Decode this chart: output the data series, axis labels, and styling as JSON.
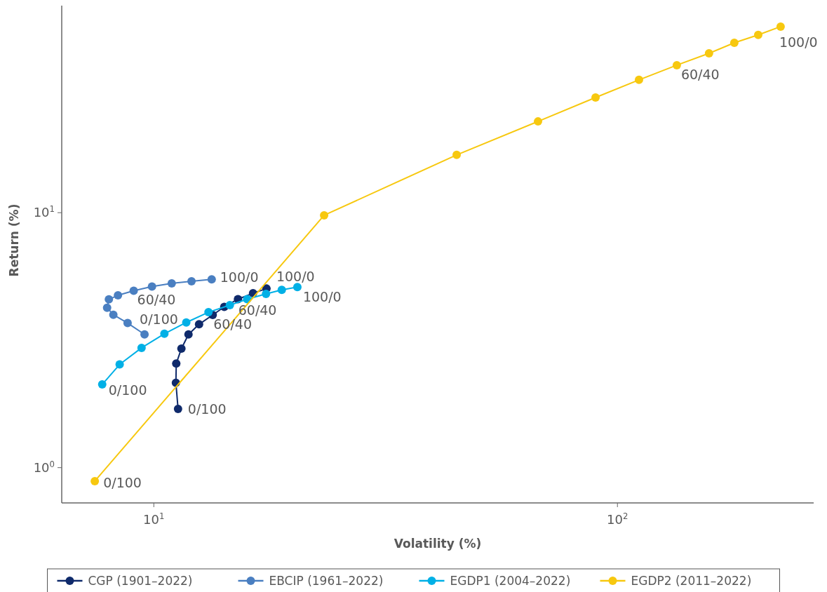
{
  "chart_data": {
    "type": "line",
    "xlabel": "Volatility (%)",
    "ylabel": "Return (%)",
    "log": "xy",
    "marker": "circle",
    "grid": false,
    "legend": "bottom",
    "xlim": [
      6.33,
      265
    ],
    "ylim": [
      0.727,
      64.9
    ],
    "xticks": [
      {
        "value": 10,
        "label": "10$^{1}$"
      },
      {
        "value": 100,
        "label": "10$^{2}$"
      }
    ],
    "yticks": [
      {
        "value": 1,
        "label": "10$^{0}$"
      },
      {
        "value": 10,
        "label": "10$^{1}$"
      }
    ],
    "series": [
      {
        "name": "CGP (1901–2022)",
        "color": "#0f2a6b",
        "x": [
          11.28,
          11.16,
          11.18,
          11.47,
          11.88,
          12.52,
          13.4,
          14.19,
          15.19,
          16.37,
          17.5
        ],
        "values": [
          1.7,
          2.15,
          2.56,
          2.93,
          3.33,
          3.65,
          3.97,
          4.27,
          4.58,
          4.83,
          5.04
        ]
      },
      {
        "name": "EBCIP (1961–2022)",
        "color": "#4a7fc1",
        "x": [
          9.55,
          8.78,
          8.18,
          7.93,
          8.0,
          8.37,
          9.05,
          9.91,
          10.93,
          12.06,
          13.33
        ],
        "values": [
          3.33,
          3.69,
          3.98,
          4.24,
          4.57,
          4.74,
          4.94,
          5.13,
          5.28,
          5.38,
          5.48
        ]
      },
      {
        "name": "EGDP1 (2004–2022)",
        "color": "#00b0e6",
        "x": [
          7.74,
          8.44,
          9.41,
          10.54,
          11.75,
          13.12,
          14.59,
          15.9,
          17.46,
          18.88,
          20.4
        ],
        "values": [
          2.12,
          2.54,
          2.95,
          3.35,
          3.71,
          4.07,
          4.34,
          4.58,
          4.8,
          4.98,
          5.11
        ]
      },
      {
        "name": "EGDP2 (2011–2022)",
        "color": "#f7c80f",
        "x": [
          7.46,
          23.3,
          45.0,
          67.4,
          89.7,
          111.3,
          134.3,
          157.6,
          178.7,
          201.2,
          224.9
        ],
        "values": [
          0.885,
          9.77,
          16.85,
          22.8,
          28.3,
          33.2,
          37.9,
          42.2,
          46.4,
          49.8,
          53.7
        ]
      }
    ],
    "annotations": [
      {
        "text": "0/100",
        "x": 11.28,
        "y": 1.7
      },
      {
        "text": "60/40",
        "x": 13.4,
        "y": 3.97
      },
      {
        "text": "100/0",
        "x": 17.5,
        "y": 5.04
      },
      {
        "text": "0/100",
        "x": 9.55,
        "y": 3.33
      },
      {
        "text": "60/40",
        "x": 9.05,
        "y": 4.94
      },
      {
        "text": "100/0",
        "x": 13.33,
        "y": 5.48
      },
      {
        "text": "0/100",
        "x": 7.74,
        "y": 2.12
      },
      {
        "text": "60/40",
        "x": 14.59,
        "y": 4.34
      },
      {
        "text": "100/0",
        "x": 20.4,
        "y": 5.11
      },
      {
        "text": "0/100",
        "x": 7.46,
        "y": 0.885
      },
      {
        "text": "60/40",
        "x": 134.3,
        "y": 37.9
      },
      {
        "text": "100/0",
        "x": 224.9,
        "y": 53.7
      }
    ]
  }
}
